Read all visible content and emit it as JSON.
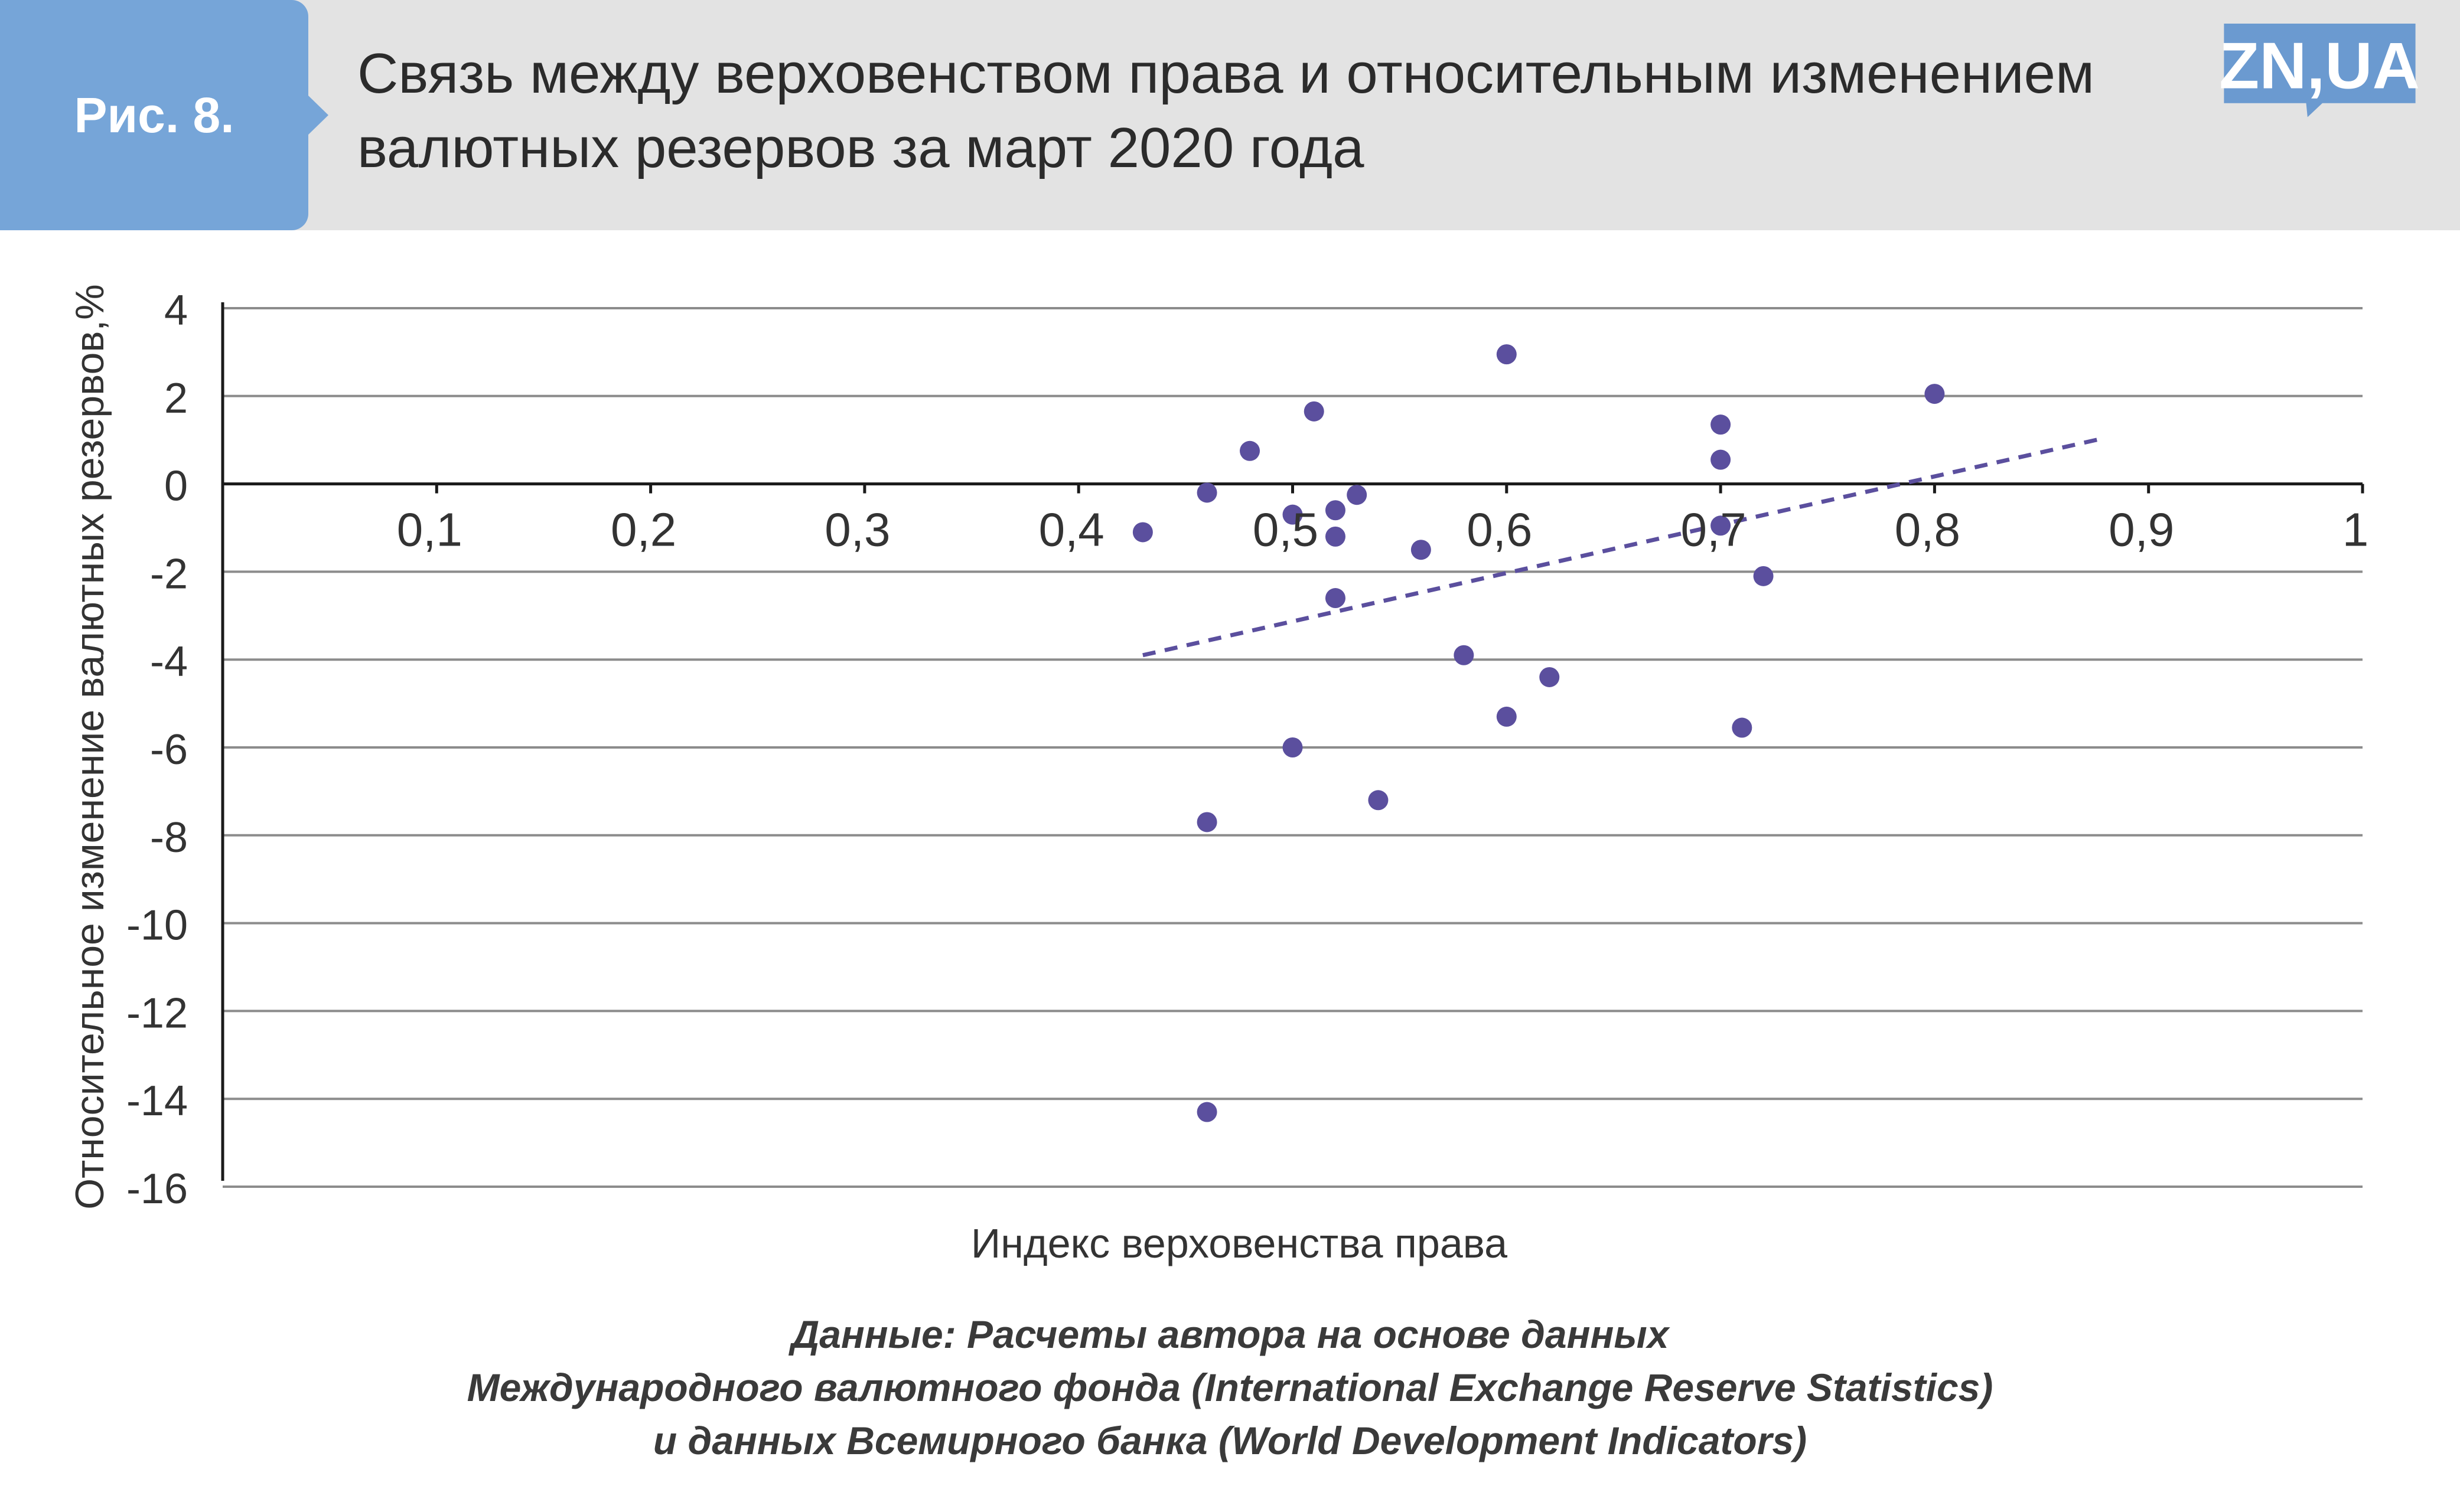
{
  "figure_label": "Рис. 8.",
  "title_lines": [
    "Связь между верховенством права и относительным изменением",
    "валютных резервов за март 2020 года"
  ],
  "logo_text": "ZN,UA",
  "source_lines": [
    "Данные: Расчеты автора на основе данных",
    "Международного валютного фонда (International Exchange Reserve Statistics)",
    "и данных Всемирного банка (World Development Indicators)"
  ],
  "colors": {
    "header_bg": "#e3e3e3",
    "badge": "#76a5d8",
    "logo": "#6b9ad0",
    "points": "#5b4f9e",
    "trendline": "#5b4f9e",
    "grid": "#8c8c8c"
  },
  "chart_data": {
    "type": "scatter",
    "title": "",
    "xlabel": "Индекс верховенства права",
    "ylabel": "Относительное изменение валютных резервов,%",
    "xlim": [
      0,
      1
    ],
    "ylim": [
      -16,
      4
    ],
    "x_tick_labels": [
      "0,1",
      "0,2",
      "0,3",
      "0,4",
      "0,5",
      "0,6",
      "0,7",
      "0,8",
      "0,9",
      "1"
    ],
    "y_tick_labels": [
      "4",
      "2",
      "0",
      "-2",
      "-4",
      "-6",
      "-8",
      "-10",
      "-12",
      "-14",
      "-16"
    ],
    "grid": "horizontal",
    "legend": "none",
    "series": [
      {
        "points": [
          {
            "x": 0.43,
            "y": -1.1
          },
          {
            "x": 0.46,
            "y": -0.2
          },
          {
            "x": 0.46,
            "y": -7.7
          },
          {
            "x": 0.46,
            "y": -14.3
          },
          {
            "x": 0.48,
            "y": 0.75
          },
          {
            "x": 0.5,
            "y": -0.7
          },
          {
            "x": 0.5,
            "y": -6.0
          },
          {
            "x": 0.51,
            "y": 1.65
          },
          {
            "x": 0.52,
            "y": -0.6
          },
          {
            "x": 0.52,
            "y": -1.2
          },
          {
            "x": 0.52,
            "y": -2.6
          },
          {
            "x": 0.53,
            "y": -0.25
          },
          {
            "x": 0.54,
            "y": -7.2
          },
          {
            "x": 0.56,
            "y": -1.5
          },
          {
            "x": 0.58,
            "y": -3.9
          },
          {
            "x": 0.6,
            "y": 2.95
          },
          {
            "x": 0.6,
            "y": -5.3
          },
          {
            "x": 0.62,
            "y": -4.4
          },
          {
            "x": 0.7,
            "y": 1.35
          },
          {
            "x": 0.7,
            "y": 0.55
          },
          {
            "x": 0.7,
            "y": -0.95
          },
          {
            "x": 0.71,
            "y": -5.55
          },
          {
            "x": 0.72,
            "y": -2.1
          },
          {
            "x": 0.8,
            "y": 2.05
          }
        ]
      }
    ],
    "trendline": {
      "style": "dashed",
      "x": [
        0.43,
        0.88
      ],
      "y": [
        -3.9,
        1.05
      ]
    }
  }
}
